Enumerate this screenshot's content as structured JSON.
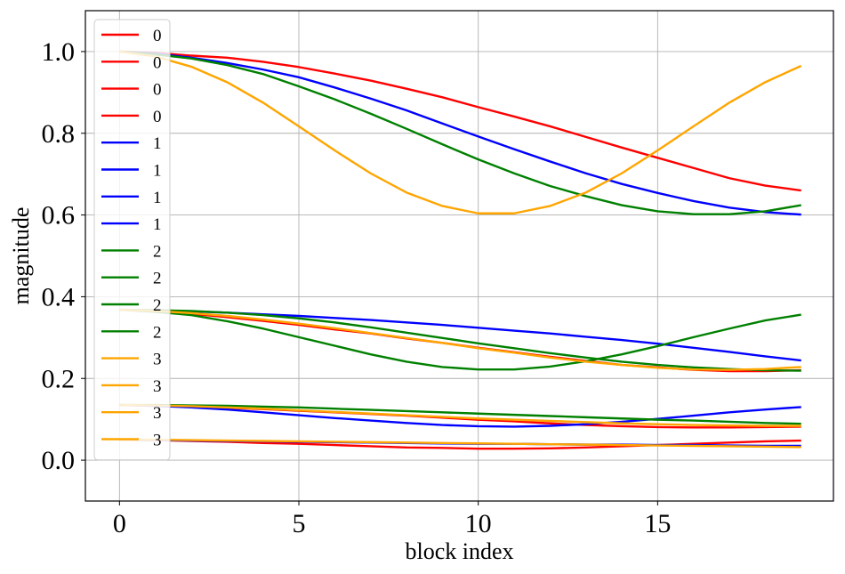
{
  "chart_data": {
    "type": "line",
    "title": "",
    "xlabel": "block index",
    "ylabel": "magnitude",
    "xlim": [
      -0.95,
      19.9
    ],
    "ylim": [
      -0.1,
      1.1
    ],
    "grid": true,
    "legend_position": "upper-left",
    "x_ticks": [
      0,
      5,
      10,
      15
    ],
    "y_ticks": [
      0.0,
      0.2,
      0.4,
      0.6,
      0.8,
      1.0
    ],
    "x_tick_labels": [
      "0",
      "5",
      "10",
      "15"
    ],
    "y_tick_labels": [
      "0.0",
      "0.2",
      "0.4",
      "0.6",
      "0.8",
      "1.0"
    ],
    "x": [
      0,
      1,
      2,
      3,
      4,
      5,
      6,
      7,
      8,
      9,
      10,
      11,
      12,
      13,
      14,
      15,
      16,
      17,
      18,
      19
    ],
    "series": [
      {
        "name": "0",
        "color": "#ff0000",
        "values": [
          1.0,
          0.997,
          0.99,
          0.985,
          0.975,
          0.962,
          0.946,
          0.929,
          0.909,
          0.888,
          0.864,
          0.841,
          0.817,
          0.791,
          0.765,
          0.74,
          0.715,
          0.69,
          0.672,
          0.66
        ]
      },
      {
        "name": "0",
        "color": "#ff0000",
        "values": [
          0.368,
          0.365,
          0.358,
          0.35,
          0.341,
          0.331,
          0.32,
          0.31,
          0.298,
          0.287,
          0.275,
          0.264,
          0.253,
          0.243,
          0.233,
          0.227,
          0.221,
          0.218,
          0.218,
          0.22
        ]
      },
      {
        "name": "0",
        "color": "#ff0000",
        "values": [
          0.135,
          0.133,
          0.131,
          0.128,
          0.125,
          0.121,
          0.117,
          0.113,
          0.109,
          0.104,
          0.099,
          0.095,
          0.09,
          0.086,
          0.083,
          0.081,
          0.08,
          0.08,
          0.081,
          0.082
        ]
      },
      {
        "name": "0",
        "color": "#ff0000",
        "values": [
          0.05,
          0.049,
          0.047,
          0.045,
          0.042,
          0.04,
          0.037,
          0.034,
          0.031,
          0.03,
          0.028,
          0.028,
          0.029,
          0.031,
          0.034,
          0.037,
          0.04,
          0.043,
          0.046,
          0.048
        ]
      },
      {
        "name": "1",
        "color": "#0000ff",
        "values": [
          1.0,
          0.995,
          0.985,
          0.972,
          0.956,
          0.937,
          0.912,
          0.885,
          0.856,
          0.824,
          0.792,
          0.761,
          0.731,
          0.702,
          0.676,
          0.654,
          0.634,
          0.618,
          0.607,
          0.601
        ]
      },
      {
        "name": "1",
        "color": "#0000ff",
        "values": [
          0.368,
          0.366,
          0.364,
          0.361,
          0.357,
          0.353,
          0.348,
          0.343,
          0.337,
          0.331,
          0.324,
          0.317,
          0.31,
          0.302,
          0.294,
          0.285,
          0.275,
          0.265,
          0.254,
          0.244
        ]
      },
      {
        "name": "1",
        "color": "#0000ff",
        "values": [
          0.135,
          0.133,
          0.129,
          0.124,
          0.117,
          0.11,
          0.103,
          0.097,
          0.091,
          0.086,
          0.083,
          0.082,
          0.084,
          0.088,
          0.094,
          0.101,
          0.109,
          0.117,
          0.124,
          0.13
        ]
      },
      {
        "name": "1",
        "color": "#0000ff",
        "values": [
          0.05,
          0.049,
          0.048,
          0.047,
          0.046,
          0.045,
          0.044,
          0.043,
          0.042,
          0.041,
          0.04,
          0.04,
          0.039,
          0.038,
          0.038,
          0.037,
          0.037,
          0.036,
          0.035,
          0.035
        ]
      },
      {
        "name": "2",
        "color": "#008000",
        "values": [
          1.0,
          0.993,
          0.983,
          0.967,
          0.945,
          0.915,
          0.883,
          0.848,
          0.811,
          0.773,
          0.736,
          0.702,
          0.671,
          0.646,
          0.624,
          0.609,
          0.602,
          0.602,
          0.609,
          0.624
        ]
      },
      {
        "name": "2",
        "color": "#008000",
        "values": [
          0.368,
          0.363,
          0.355,
          0.34,
          0.322,
          0.301,
          0.28,
          0.259,
          0.241,
          0.228,
          0.222,
          0.222,
          0.229,
          0.242,
          0.259,
          0.279,
          0.301,
          0.322,
          0.342,
          0.356
        ]
      },
      {
        "name": "2",
        "color": "#008000",
        "values": [
          0.135,
          0.135,
          0.134,
          0.133,
          0.131,
          0.129,
          0.126,
          0.123,
          0.12,
          0.117,
          0.114,
          0.111,
          0.108,
          0.105,
          0.102,
          0.099,
          0.097,
          0.094,
          0.091,
          0.089
        ]
      },
      {
        "name": "2",
        "color": "#008000",
        "values": [
          0.368,
          0.367,
          0.365,
          0.361,
          0.355,
          0.347,
          0.337,
          0.325,
          0.312,
          0.299,
          0.286,
          0.274,
          0.262,
          0.251,
          0.241,
          0.233,
          0.227,
          0.223,
          0.22,
          0.219
        ]
      },
      {
        "name": "3",
        "color": "#ffa500",
        "values": [
          1.0,
          0.988,
          0.963,
          0.925,
          0.875,
          0.817,
          0.758,
          0.702,
          0.655,
          0.622,
          0.604,
          0.604,
          0.622,
          0.655,
          0.702,
          0.758,
          0.817,
          0.875,
          0.925,
          0.965
        ]
      },
      {
        "name": "3",
        "color": "#ffa500",
        "values": [
          0.368,
          0.365,
          0.36,
          0.353,
          0.344,
          0.334,
          0.323,
          0.311,
          0.299,
          0.287,
          0.274,
          0.263,
          0.251,
          0.241,
          0.233,
          0.226,
          0.222,
          0.221,
          0.223,
          0.228
        ]
      },
      {
        "name": "3",
        "color": "#ffa500",
        "values": [
          0.135,
          0.134,
          0.132,
          0.129,
          0.126,
          0.122,
          0.118,
          0.114,
          0.11,
          0.106,
          0.102,
          0.099,
          0.096,
          0.093,
          0.09,
          0.088,
          0.086,
          0.085,
          0.084,
          0.084
        ]
      },
      {
        "name": "3",
        "color": "#ffa500",
        "values": [
          0.05,
          0.05,
          0.049,
          0.048,
          0.047,
          0.046,
          0.045,
          0.044,
          0.043,
          0.042,
          0.041,
          0.04,
          0.039,
          0.038,
          0.037,
          0.036,
          0.035,
          0.034,
          0.033,
          0.032
        ]
      }
    ]
  }
}
